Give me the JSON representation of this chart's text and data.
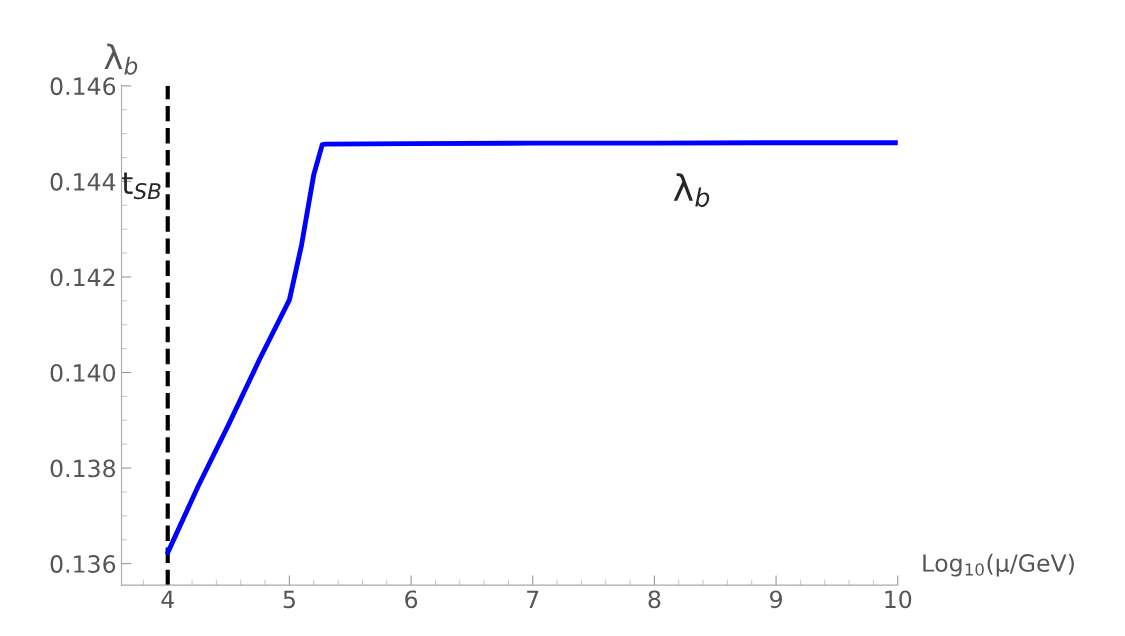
{
  "chart_data": {
    "type": "line",
    "xlabel": "Log$_{10}$(μ/GeV)",
    "ylabel": "λ$_{b}$",
    "xlim": [
      3.62,
      10
    ],
    "ylim": [
      0.13555,
      0.146
    ],
    "xticks": [
      4,
      5,
      6,
      7,
      8,
      9,
      10
    ],
    "yticks": [
      {
        "value": 0.136,
        "label": "0.136"
      },
      {
        "value": 0.138,
        "label": "0.138"
      },
      {
        "value": 0.14,
        "label": "0.140"
      },
      {
        "value": 0.142,
        "label": "0.142"
      },
      {
        "value": 0.144,
        "label": "0.144"
      },
      {
        "value": 0.146,
        "label": "0.146"
      }
    ],
    "x": [
      4,
      4.25,
      4.5,
      4.75,
      5.0,
      5.1,
      5.2,
      5.27,
      5.3,
      6,
      7,
      8,
      9,
      10
    ],
    "series": [
      {
        "color": "#0000ff",
        "values": [
          0.13623,
          0.13762,
          0.13891,
          0.14025,
          0.14152,
          0.14267,
          0.14414,
          0.14477,
          0.14478,
          0.14479,
          0.1448,
          0.1448,
          0.14481,
          0.14481
        ]
      }
    ],
    "ref_lines": [
      {
        "axis": "x",
        "value": 4,
        "label": "t$_{SB}$",
        "color": "#000000",
        "line_style": "dashed"
      }
    ],
    "annotations": [
      "λ$_{b}$"
    ],
    "grid": false,
    "legend": false,
    "marker": "none",
    "line_style": "solid"
  }
}
